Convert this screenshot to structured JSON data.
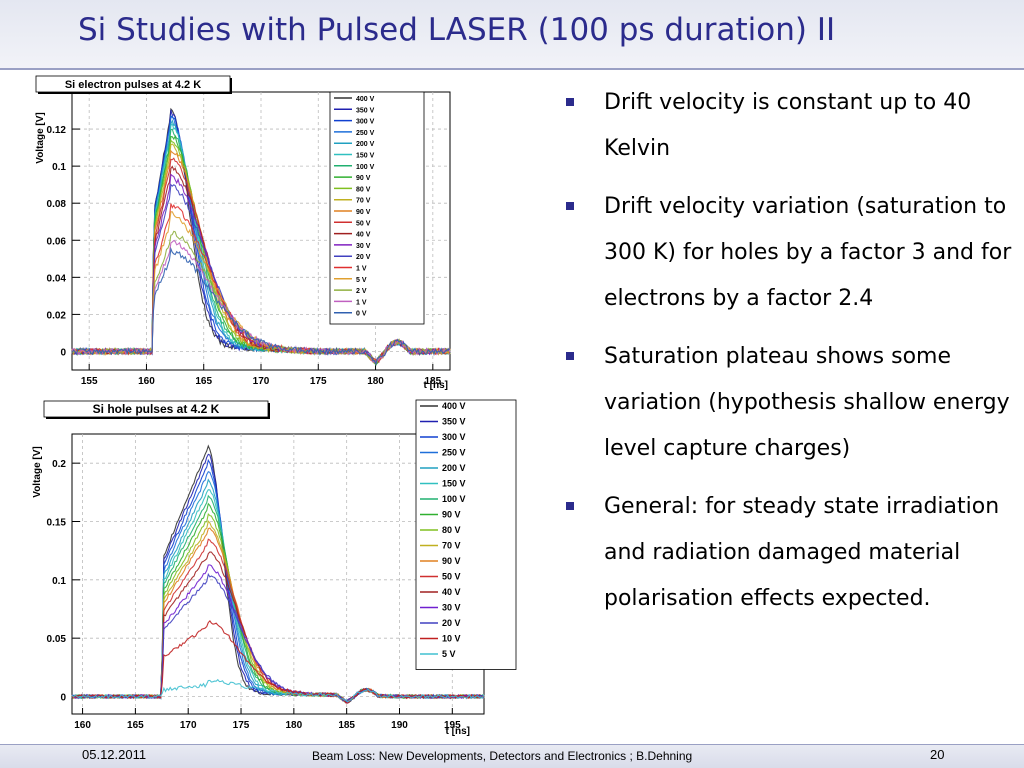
{
  "title": "Si Studies with Pulsed LASER (100 ps duration) II",
  "bullets": [
    "Drift velocity is constant up to 40 Kelvin",
    "Drift velocity variation (saturation to 300 K) for holes by a factor 3 and for electrons by a factor 2.4",
    "Saturation plateau shows some variation (hypothesis shallow energy level capture charges)",
    "General: for steady state irradiation and radiation damaged material polarisation effects expected."
  ],
  "footer": {
    "date": "05.12.2011",
    "center": "Beam Loss: New Developments, Detectors and Electronics ; B.Dehning",
    "page": "20"
  },
  "chart_data": [
    {
      "type": "line",
      "title": "Si electron pulses at 4.2 K",
      "xlabel": "t [ns]",
      "ylabel": "Voltage [V]",
      "xlim": [
        153.5,
        186.5
      ],
      "ylim": [
        -0.01,
        0.14
      ],
      "xticks": [
        155,
        160,
        165,
        170,
        175,
        180,
        185
      ],
      "yticks": [
        0,
        0.02,
        0.04,
        0.06,
        0.08,
        0.1,
        0.12
      ],
      "grid": true,
      "legend_position": "top-right",
      "pulse": {
        "start": 160.5,
        "peak_t": 162.1,
        "fall_tau": 2.2,
        "tail_end": 175,
        "dip_t": 180
      },
      "series": [
        {
          "name": "400 V",
          "color": "#333333",
          "peak": 0.127
        },
        {
          "name": "350 V",
          "color": "#2020b0",
          "peak": 0.125
        },
        {
          "name": "300 V",
          "color": "#1040d0",
          "peak": 0.124
        },
        {
          "name": "250 V",
          "color": "#1e6fd9",
          "peak": 0.122
        },
        {
          "name": "200 V",
          "color": "#20a0c0",
          "peak": 0.12
        },
        {
          "name": "150 V",
          "color": "#30c0c0",
          "peak": 0.118
        },
        {
          "name": "100 V",
          "color": "#20b070",
          "peak": 0.115
        },
        {
          "name": "90 V",
          "color": "#30b030",
          "peak": 0.113
        },
        {
          "name": "80 V",
          "color": "#80c020",
          "peak": 0.11
        },
        {
          "name": "70 V",
          "color": "#c0b020",
          "peak": 0.107
        },
        {
          "name": "90 V",
          "color": "#e08020",
          "peak": 0.104
        },
        {
          "name": "50 V",
          "color": "#d03030",
          "peak": 0.1
        },
        {
          "name": "40 V",
          "color": "#a02020",
          "peak": 0.095
        },
        {
          "name": "30 V",
          "color": "#8020c0",
          "peak": 0.09
        },
        {
          "name": "20 V",
          "color": "#4040c0",
          "peak": 0.085
        },
        {
          "name": "1 V",
          "color": "#e03030",
          "peak": 0.075
        },
        {
          "name": "5 V",
          "color": "#e0a030",
          "peak": 0.07
        },
        {
          "name": "2 V",
          "color": "#90b040",
          "peak": 0.06
        },
        {
          "name": "1 V",
          "color": "#c060c0",
          "peak": 0.055
        },
        {
          "name": "0 V",
          "color": "#3060b0",
          "peak": 0.05
        }
      ]
    },
    {
      "type": "line",
      "title": "Si hole pulses at 4.2 K",
      "xlabel": "t [ns]",
      "ylabel": "Voltage [V]",
      "xlim": [
        159,
        198
      ],
      "ylim": [
        -0.015,
        0.225
      ],
      "xticks": [
        160,
        165,
        170,
        175,
        180,
        185,
        190,
        195
      ],
      "yticks": [
        0,
        0.05,
        0.1,
        0.15,
        0.2
      ],
      "grid": true,
      "legend_position": "top-right",
      "pulse": {
        "start": 167.5,
        "peak_t": 171.8,
        "fall_tau": 2.0,
        "tail_end": 190,
        "dip_t": 185
      },
      "series": [
        {
          "name": "400 V",
          "color": "#333333",
          "peak": 0.212
        },
        {
          "name": "350 V",
          "color": "#2020b0",
          "peak": 0.205
        },
        {
          "name": "300 V",
          "color": "#1040d0",
          "peak": 0.198
        },
        {
          "name": "250 V",
          "color": "#1e6fd9",
          "peak": 0.19
        },
        {
          "name": "200 V",
          "color": "#20a0c0",
          "peak": 0.182
        },
        {
          "name": "150 V",
          "color": "#30c0c0",
          "peak": 0.175
        },
        {
          "name": "100 V",
          "color": "#20b070",
          "peak": 0.168
        },
        {
          "name": "90 V",
          "color": "#30b030",
          "peak": 0.16
        },
        {
          "name": "80 V",
          "color": "#80c020",
          "peak": 0.152
        },
        {
          "name": "70 V",
          "color": "#c0b020",
          "peak": 0.145
        },
        {
          "name": "90 V",
          "color": "#e08020",
          "peak": 0.14
        },
        {
          "name": "50 V",
          "color": "#d03030",
          "peak": 0.13
        },
        {
          "name": "40 V",
          "color": "#a02020",
          "peak": 0.12
        },
        {
          "name": "30 V",
          "color": "#7020d0",
          "peak": 0.108
        },
        {
          "name": "20 V",
          "color": "#4040c0",
          "peak": 0.1
        },
        {
          "name": "10 V",
          "color": "#c02020",
          "peak": 0.06
        },
        {
          "name": "5 V",
          "color": "#40c0d0",
          "peak": 0.01
        }
      ]
    }
  ]
}
